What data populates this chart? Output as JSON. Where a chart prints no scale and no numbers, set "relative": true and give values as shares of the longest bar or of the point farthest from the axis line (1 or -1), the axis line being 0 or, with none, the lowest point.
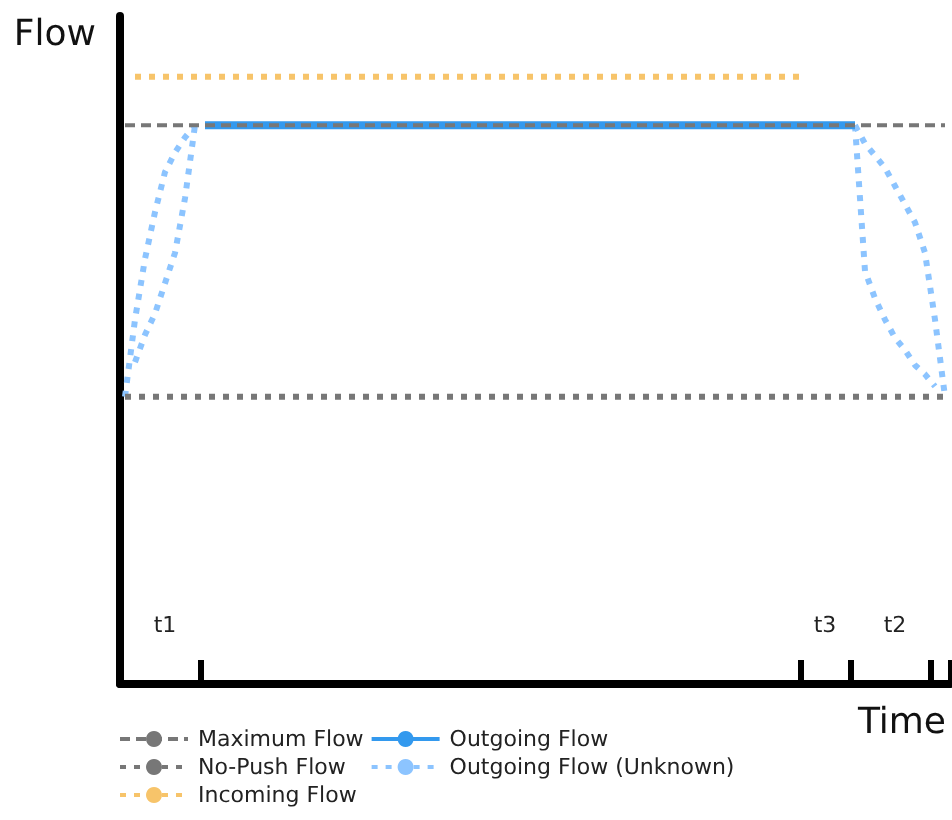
{
  "chart_data": {
    "type": "line",
    "xlabel": "Time",
    "ylabel": "Flow",
    "relative": true,
    "categories": [
      null,
      null,
      null,
      null,
      "t1",
      null,
      null,
      null,
      null,
      null,
      null,
      null,
      null,
      null,
      null,
      null,
      null,
      null,
      null,
      null,
      null,
      null,
      null,
      null,
      null,
      null,
      null,
      null,
      null,
      null,
      null,
      null,
      null,
      null,
      null,
      null,
      null,
      null,
      null,
      null,
      null,
      null,
      null,
      null,
      null,
      null,
      null,
      null,
      null,
      null,
      null,
      null,
      null,
      null,
      null,
      null,
      null,
      null,
      null,
      null,
      null,
      null,
      null,
      null,
      null,
      null,
      null,
      null,
      null,
      null,
      "t3",
      null,
      null,
      null,
      null,
      null,
      null,
      "t2",
      null,
      null,
      null,
      null,
      null
    ],
    "grid": false,
    "legend": "bottom left",
    "marker": "none",
    "series": [
      {
        "name": "Maximum Flow",
        "color": "#777777",
        "line_style": "dashed",
        "values": [
          0.92,
          0.92,
          0.92,
          0.92,
          0.92,
          0.92,
          0.92,
          0.92,
          0.92,
          0.92,
          0.92,
          0.92,
          0.92,
          0.92,
          0.92,
          0.92,
          0.92,
          0.92,
          0.92,
          0.92,
          0.92,
          0.92,
          0.92,
          0.92,
          0.92,
          0.92,
          0.92,
          0.92,
          0.92,
          0.92,
          0.92,
          0.92,
          0.92,
          0.92,
          0.92,
          0.92,
          0.92,
          0.92,
          0.92,
          0.92,
          0.92,
          0.92,
          0.92,
          0.92,
          0.92,
          0.92,
          0.92,
          0.92,
          0.92,
          0.92,
          0.92,
          0.92,
          0.92,
          0.92,
          0.92,
          0.92,
          0.92,
          0.92,
          0.92,
          0.92,
          0.92,
          0.92,
          0.92,
          0.92,
          0.92,
          0.92,
          0.92,
          0.92,
          0.92,
          0.92,
          0.92,
          0.92,
          0.92,
          0.92,
          0.92,
          0.92,
          0.92,
          0.92,
          0.92,
          0.92,
          0.92,
          0.92,
          0.92
        ]
      },
      {
        "name": "No-Push Flow",
        "color": "#777777",
        "line_style": "dotted",
        "values": [
          0.473,
          0.473,
          0.473,
          0.473,
          0.473,
          0.473,
          0.473,
          0.473,
          0.473,
          0.473,
          0.473,
          0.473,
          0.473,
          0.473,
          0.473,
          0.473,
          0.473,
          0.473,
          0.473,
          0.473,
          0.473,
          0.473,
          0.473,
          0.473,
          0.473,
          0.473,
          0.473,
          0.473,
          0.473,
          0.473,
          0.473,
          0.473,
          0.473,
          0.473,
          0.473,
          0.473,
          0.473,
          0.473,
          0.473,
          0.473,
          0.473,
          0.473,
          0.473,
          0.473,
          0.473,
          0.473,
          0.473,
          0.473,
          0.473,
          0.473,
          0.473,
          0.473,
          0.473,
          0.473,
          0.473,
          0.473,
          0.473,
          0.473,
          0.473,
          0.473,
          0.473,
          0.473,
          0.473,
          0.473,
          0.473,
          0.473,
          0.473,
          0.473,
          0.473,
          0.473,
          0.473,
          0.473,
          0.473,
          0.473,
          0.473,
          0.473,
          0.473,
          0.473,
          0.473,
          0.473,
          0.473,
          0.473,
          0.473
        ]
      },
      {
        "name": "Incoming Flow",
        "color": "#f7c46a",
        "line_style": "dotted",
        "values": [
          null,
          1,
          1,
          1,
          1,
          1,
          1,
          1,
          1,
          1,
          1,
          1,
          1,
          1,
          1,
          1,
          1,
          1,
          1,
          1,
          1,
          1,
          1,
          1,
          1,
          1,
          1,
          1,
          1,
          1,
          1,
          1,
          1,
          1,
          1,
          1,
          1,
          1,
          1,
          1,
          1,
          1,
          1,
          1,
          1,
          1,
          1,
          1,
          1,
          1,
          1,
          1,
          1,
          1,
          1,
          1,
          1,
          1,
          1,
          1,
          1,
          1,
          1,
          1,
          1,
          1,
          1,
          1,
          1,
          null,
          null,
          null,
          null,
          null,
          null,
          null,
          null,
          null,
          null,
          null,
          null,
          null,
          null
        ]
      },
      {
        "name": "Outgoing Flow",
        "color": "#3399ee",
        "line_style": "solid",
        "values": [
          null,
          null,
          null,
          null,
          null,
          null,
          null,
          null,
          0.92,
          0.92,
          0.92,
          0.92,
          0.92,
          0.92,
          0.92,
          0.92,
          0.92,
          0.92,
          0.92,
          0.92,
          0.92,
          0.92,
          0.92,
          0.92,
          0.92,
          0.92,
          0.92,
          0.92,
          0.92,
          0.92,
          0.92,
          0.92,
          0.92,
          0.92,
          0.92,
          0.92,
          0.92,
          0.92,
          0.92,
          0.92,
          0.92,
          0.92,
          0.92,
          0.92,
          0.92,
          0.92,
          0.92,
          0.92,
          0.92,
          0.92,
          0.92,
          0.92,
          0.92,
          0.92,
          0.92,
          0.92,
          0.92,
          0.92,
          0.92,
          0.92,
          0.92,
          0.92,
          0.92,
          0.92,
          0.92,
          0.92,
          0.92,
          0.92,
          0.92,
          0.92,
          0.92,
          0.92,
          0.92,
          0.92,
          null,
          null,
          null,
          null,
          null,
          null,
          null,
          null,
          null
        ]
      },
      {
        "name": "Outgoing Flow (Unknown)",
        "color": "#8cc4ff",
        "line_style": "dotted",
        "values": [
          0.473,
          0.6,
          0.7,
          0.777,
          0.843,
          0.875,
          0.9,
          0.92,
          null,
          null,
          null,
          null,
          null,
          null,
          null,
          null,
          null,
          null,
          null,
          null,
          null,
          null,
          null,
          null,
          null,
          null,
          null,
          null,
          null,
          null,
          null,
          null,
          null,
          null,
          null,
          null,
          null,
          null,
          null,
          null,
          null,
          null,
          null,
          null,
          null,
          null,
          null,
          null,
          null,
          null,
          null,
          null,
          null,
          null,
          null,
          null,
          null,
          null,
          null,
          null,
          null,
          null,
          null,
          null,
          null,
          null,
          null,
          null,
          null,
          null,
          null,
          null,
          null,
          null,
          null,
          null,
          null,
          null,
          null,
          null,
          null,
          null,
          null
        ]
      },
      {
        "color": "#8cc4ff",
        "line_style": "dotted",
        "values": [
          null,
          0.53,
          0.575,
          0.61,
          0.66,
          0.71,
          0.8,
          0.92,
          null,
          null,
          null,
          null,
          null,
          null,
          null,
          null,
          null,
          null,
          null,
          null,
          null,
          null,
          null,
          null,
          null,
          null,
          null,
          null,
          null,
          null,
          null,
          null,
          null,
          null,
          null,
          null,
          null,
          null,
          null,
          null,
          null,
          null,
          null,
          null,
          null,
          null,
          null,
          null,
          null,
          null,
          null,
          null,
          null,
          null,
          null,
          null,
          null,
          null,
          null,
          null,
          null,
          null,
          null,
          null,
          null,
          null,
          null,
          null,
          null,
          null,
          null,
          null,
          null,
          null,
          null,
          null,
          null,
          null,
          null,
          null,
          null,
          null,
          null
        ]
      },
      {
        "color": "#8cc4ff",
        "line_style": "dotted",
        "values": [
          null,
          null,
          null,
          null,
          null,
          null,
          null,
          null,
          null,
          null,
          null,
          null,
          null,
          null,
          null,
          null,
          null,
          null,
          null,
          null,
          null,
          null,
          null,
          null,
          null,
          null,
          null,
          null,
          null,
          null,
          null,
          null,
          null,
          null,
          null,
          null,
          null,
          null,
          null,
          null,
          null,
          null,
          null,
          null,
          null,
          null,
          null,
          null,
          null,
          null,
          null,
          null,
          null,
          null,
          null,
          null,
          null,
          null,
          null,
          null,
          null,
          null,
          null,
          null,
          null,
          null,
          null,
          null,
          null,
          null,
          null,
          null,
          null,
          0.92,
          0.68,
          0.635,
          0.6,
          0.57,
          0.55,
          0.525,
          0.51,
          0.49,
          null
        ]
      },
      {
        "color": "#8cc4ff",
        "line_style": "dotted",
        "values": [
          null,
          null,
          null,
          null,
          null,
          null,
          null,
          null,
          null,
          null,
          null,
          null,
          null,
          null,
          null,
          null,
          null,
          null,
          null,
          null,
          null,
          null,
          null,
          null,
          null,
          null,
          null,
          null,
          null,
          null,
          null,
          null,
          null,
          null,
          null,
          null,
          null,
          null,
          null,
          null,
          null,
          null,
          null,
          null,
          null,
          null,
          null,
          null,
          null,
          null,
          null,
          null,
          null,
          null,
          null,
          null,
          null,
          null,
          null,
          null,
          null,
          null,
          null,
          null,
          null,
          null,
          null,
          null,
          null,
          null,
          null,
          null,
          null,
          0.92,
          0.89,
          0.87,
          0.85,
          0.82,
          0.79,
          0.76,
          0.71,
          0.6,
          0.473
        ]
      }
    ]
  }
}
